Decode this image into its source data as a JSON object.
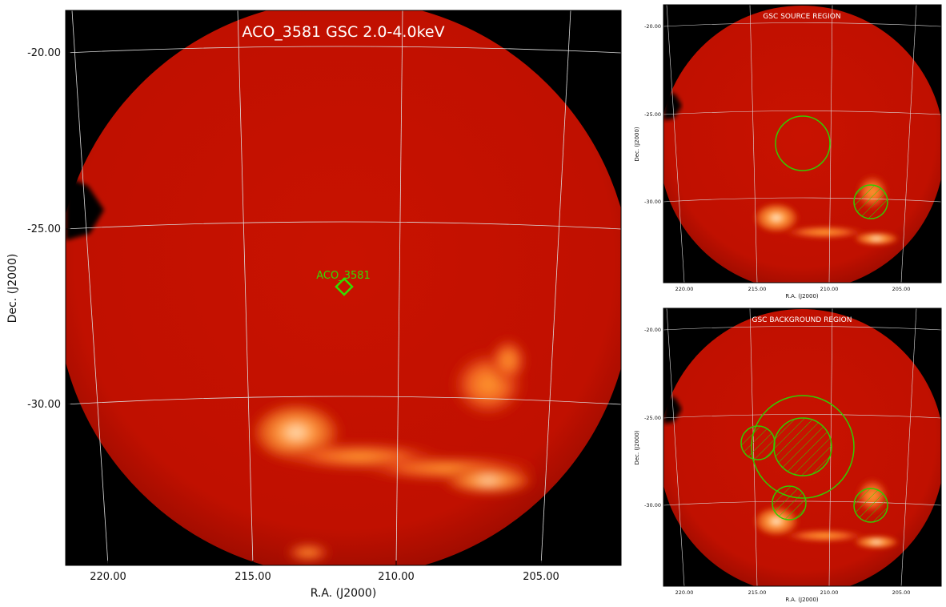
{
  "main_panel": {
    "title": "ACO_3581 GSC 2.0-4.0keV",
    "xlabel": "R.A. (J2000)",
    "ylabel": "Dec. (J2000)",
    "x_ticks": [
      "220.00",
      "215.00",
      "210.00",
      "205.00"
    ],
    "y_ticks": [
      "-20.00",
      "-25.00",
      "-30.00"
    ],
    "marker_label": "ACO_3581",
    "marker_color": "#33dd00"
  },
  "source_panel": {
    "title": "GSC SOURCE REGION",
    "xlabel": "R.A. (J2000)",
    "ylabel": "Dec. (J2000)",
    "x_ticks": [
      "220.00",
      "215.00",
      "210.00",
      "205.00"
    ],
    "y_ticks": [
      "-20.00",
      "-25.00",
      "-30.00"
    ]
  },
  "background_panel": {
    "title": "GSC BACKGROUND REGION",
    "xlabel": "R.A. (J2000)",
    "ylabel": "Dec. (J2000)",
    "x_ticks": [
      "220.00",
      "215.00",
      "210.00",
      "205.00"
    ],
    "y_ticks": [
      "-20.00",
      "-25.00",
      "-30.00"
    ]
  },
  "colors": {
    "sky_background": "#000000",
    "disk": "#c41000",
    "hot_emission": "#ffb060",
    "region_circles": "#33cc00",
    "grid": "#dddddd"
  }
}
